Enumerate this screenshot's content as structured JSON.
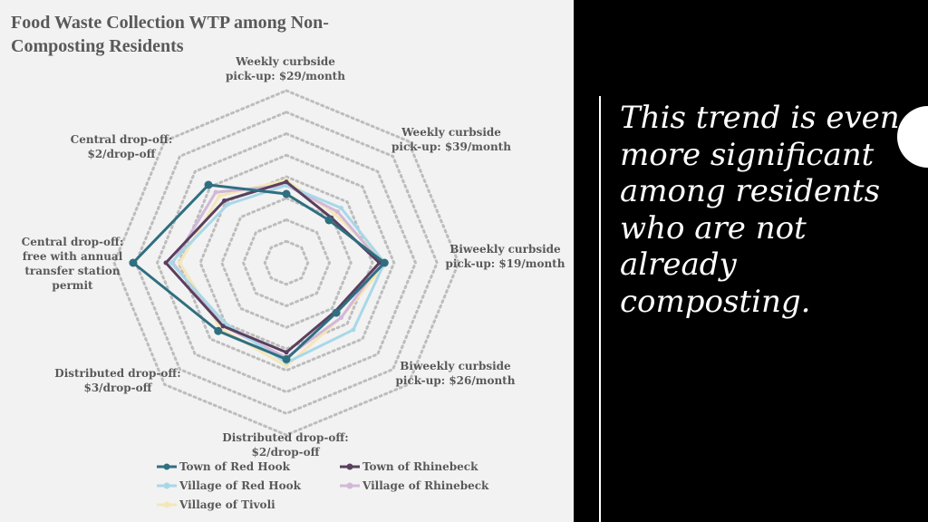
{
  "headline": "This trend is even more significant among residents who are not already composting.",
  "chart_data": {
    "type": "radar",
    "title": "Food Waste Collection WTP among Non-Composting Residents",
    "categories": [
      "Weekly curbside pick-up: $29/month",
      "Weekly curbside pick-up: $39/month",
      "Biweekly curbside pick-up: $19/month",
      "Biweekly curbside pick-up: $26/month",
      "Distributed drop-off: $2/drop-off",
      "Distributed drop-off: $3/drop-off",
      "Central drop-off: free with annual transfer station permit",
      "Central drop-off: $2/drop-off"
    ],
    "rmax": 1.0,
    "rings": 8,
    "grid": true,
    "legend_position": "bottom",
    "series": [
      {
        "name": "Town of Red Hook",
        "color": "#2e6f80",
        "values": [
          0.4,
          0.35,
          0.57,
          0.41,
          0.56,
          0.56,
          0.89,
          0.64
        ]
      },
      {
        "name": "Town of Rhinebeck",
        "color": "#5a3f5e",
        "values": [
          0.47,
          0.37,
          0.54,
          0.4,
          0.52,
          0.52,
          0.7,
          0.51
        ]
      },
      {
        "name": "Village of Red Hook",
        "color": "#a8d8e8",
        "values": [
          0.45,
          0.45,
          0.57,
          0.55,
          0.58,
          0.5,
          0.67,
          0.48
        ]
      },
      {
        "name": "Village of Rhinebeck",
        "color": "#d2b8d8",
        "values": [
          0.45,
          0.42,
          0.55,
          0.45,
          0.55,
          0.52,
          0.66,
          0.58
        ]
      },
      {
        "name": "Village of Tivoli",
        "color": "#f5e6b8",
        "values": [
          0.48,
          0.4,
          0.58,
          0.45,
          0.6,
          0.54,
          0.62,
          0.55
        ]
      }
    ]
  }
}
